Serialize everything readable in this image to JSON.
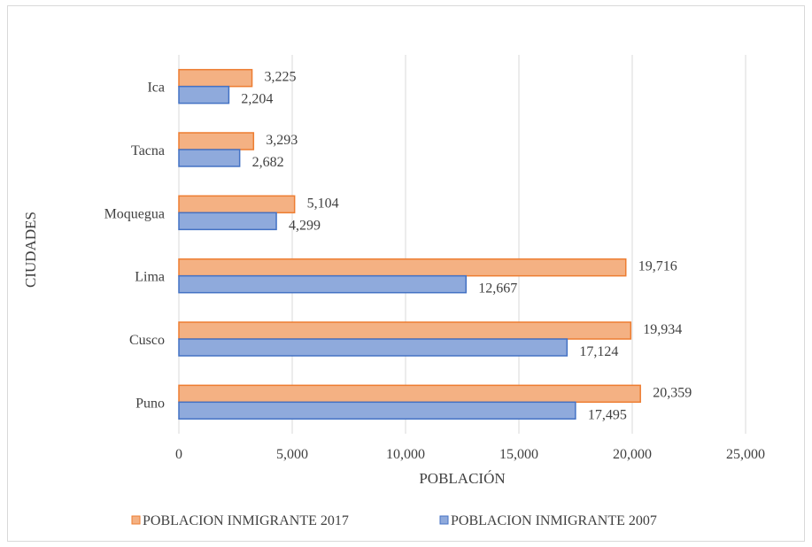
{
  "chart_data": {
    "type": "bar",
    "orientation": "horizontal",
    "title": "",
    "xlabel": "POBLACIÓN",
    "ylabel": "CIUDADES",
    "categories": [
      "Puno",
      "Cusco",
      "Lima",
      "Moquegua",
      "Tacna",
      "Ica"
    ],
    "series": [
      {
        "name": "POBLACION INMIGRANTE 2007",
        "values": [
          17495,
          17124,
          12667,
          4299,
          2682,
          2204
        ],
        "value_labels": [
          "17,495",
          "17,124",
          "12,667",
          "4,299",
          "2,682",
          "2,204"
        ],
        "color": "#8faadc",
        "stroke": "#4472c4"
      },
      {
        "name": "POBLACION INMIGRANTE 2017",
        "values": [
          20359,
          19934,
          19716,
          5104,
          3293,
          3225
        ],
        "value_labels": [
          "20,359",
          "19,934",
          "19,716",
          "5,104",
          "3,293",
          "3,225"
        ],
        "color": "#f4b183",
        "stroke": "#ed7d31"
      }
    ],
    "xlim": [
      0,
      25000
    ],
    "xticks": [
      0,
      5000,
      10000,
      15000,
      20000,
      25000
    ],
    "xtick_labels": [
      "0",
      "5,000",
      "10,000",
      "15,000",
      "20,000",
      "25,000"
    ],
    "grid": true,
    "legend_position": "bottom",
    "legend_order": [
      "POBLACION INMIGRANTE 2017",
      "POBLACION INMIGRANTE 2007"
    ]
  }
}
